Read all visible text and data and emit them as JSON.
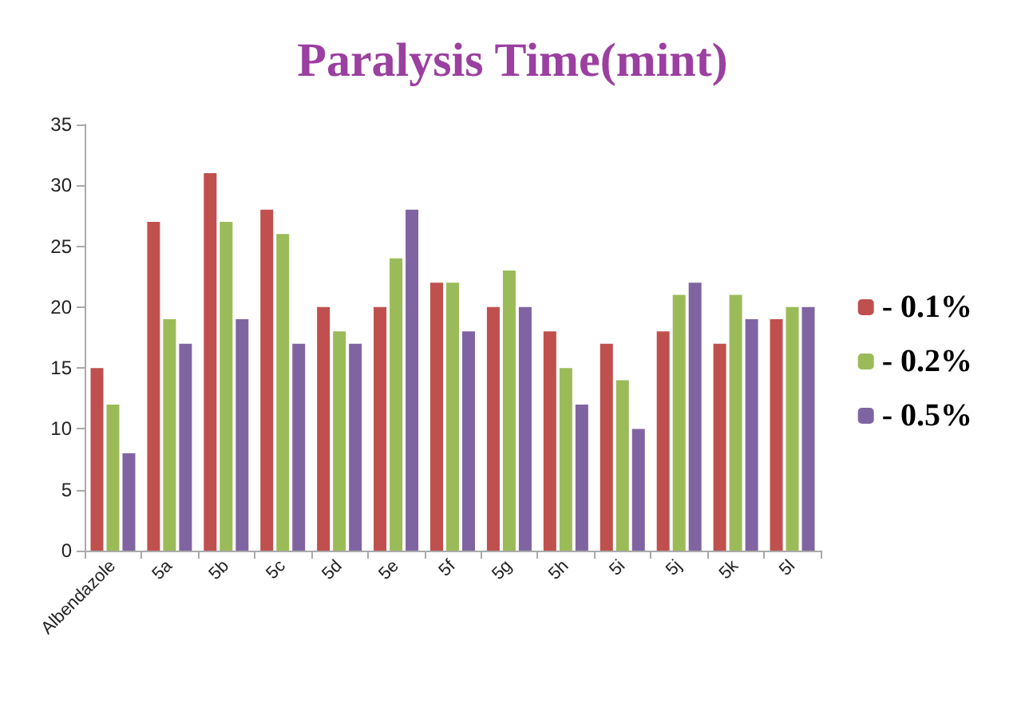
{
  "chart_data": {
    "type": "bar",
    "title": "Paralysis Time(mint)",
    "categories": [
      "Albendazole",
      "5a",
      "5b",
      "5c",
      "5d",
      "5e",
      "5f",
      "5g",
      "5h",
      "5i",
      "5j",
      "5k",
      "5l"
    ],
    "series": [
      {
        "name": "- 0.1%",
        "color": "#c0504d",
        "values": [
          15,
          27,
          31,
          28,
          20,
          20,
          22,
          20,
          18,
          17,
          18,
          17,
          19
        ]
      },
      {
        "name": "- 0.2%",
        "color": "#9bbb59",
        "values": [
          12,
          19,
          27,
          26,
          18,
          24,
          22,
          23,
          15,
          14,
          21,
          21,
          20
        ]
      },
      {
        "name": "- 0.5%",
        "color": "#8064a2",
        "values": [
          8,
          17,
          19,
          17,
          17,
          28,
          18,
          20,
          12,
          10,
          22,
          19,
          20
        ]
      }
    ],
    "ylim": [
      0,
      35
    ],
    "yticks": [
      0,
      5,
      10,
      15,
      20,
      25,
      30,
      35
    ],
    "grid": false,
    "legend": "right"
  }
}
